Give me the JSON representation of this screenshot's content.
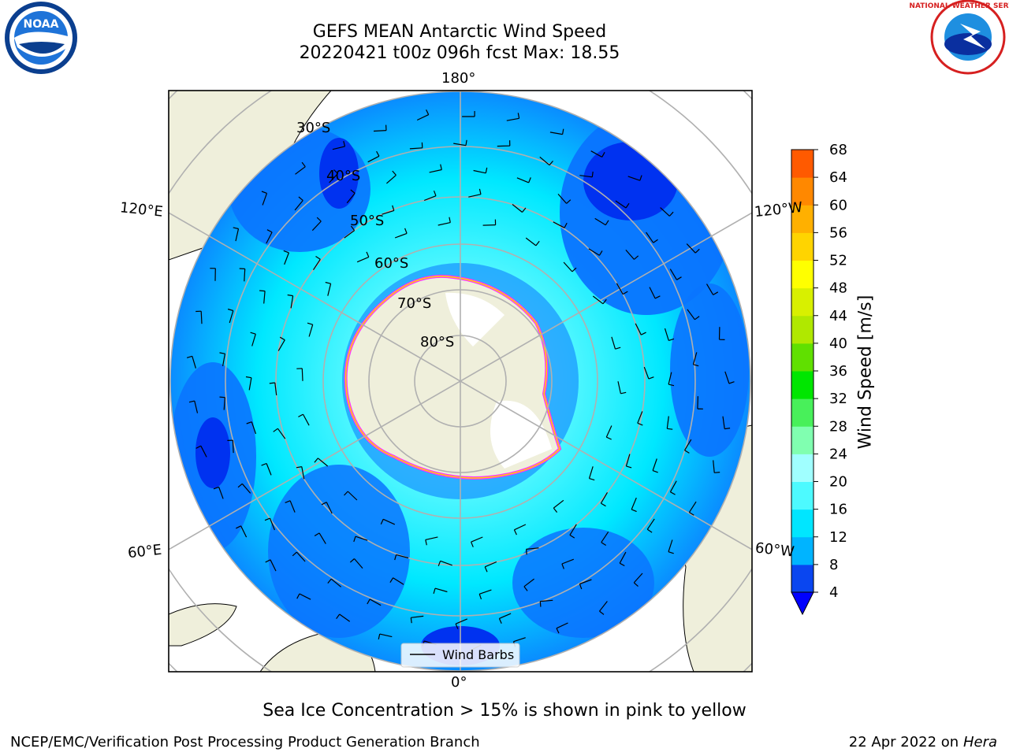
{
  "title": {
    "line1": "GEFS MEAN Antarctic Wind Speed",
    "line2": "20220421 t00z 096h fcst   Max: 18.55"
  },
  "logos": {
    "left": "noa-logo",
    "left_text": "NOAA",
    "right": "national-weather-service-logo",
    "right_text": "NATIONAL WEATHER SERVICE"
  },
  "map": {
    "longitude_labels": {
      "top": "180°",
      "bottom": "0°",
      "upper_left": "120°E",
      "upper_right": "120°W",
      "lower_left": "60°E",
      "lower_right": "60°W"
    },
    "latitude_labels": [
      "30°S",
      "40°S",
      "50°S",
      "60°S",
      "70°S",
      "80°S"
    ],
    "legend_label": "Wind Barbs"
  },
  "colorbar": {
    "label": "Wind Speed [m/s]",
    "ticks": [
      4,
      8,
      12,
      16,
      20,
      24,
      28,
      32,
      36,
      40,
      44,
      48,
      52,
      56,
      60,
      64,
      68
    ],
    "colors": [
      "#0a46f0",
      "#00b4ff",
      "#00e6ff",
      "#4dfaff",
      "#a0ffff",
      "#80ffb0",
      "#48f05a",
      "#00e600",
      "#60e000",
      "#b0e800",
      "#d8f000",
      "#ffff00",
      "#ffd400",
      "#ffb000",
      "#ff8800",
      "#ff5a00",
      "#ff2800",
      "#ff0000"
    ],
    "extend_color": "#0000ff"
  },
  "footer": {
    "note": "Sea Ice Concentration > 15% is shown in pink to yellow",
    "credit": "NCEP/EMC/Verification Post Processing Product Generation Branch",
    "date": "22 Apr 2022 on",
    "host": "Hera"
  }
}
